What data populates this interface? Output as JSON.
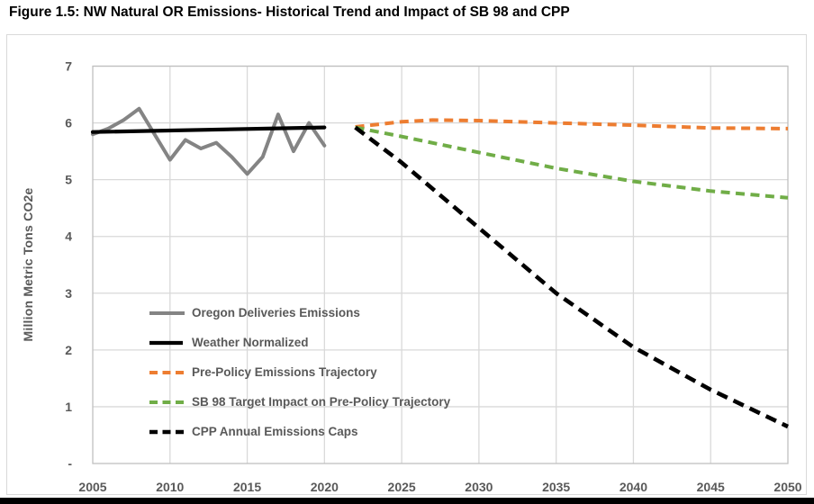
{
  "figure": {
    "title": "Figure 1.5: NW Natural OR Emissions- Historical Trend and Impact of SB 98 and CPP"
  },
  "chart_data": {
    "type": "line",
    "title": "Figure 1.5: NW Natural OR Emissions- Historical Trend and Impact of SB 98 and CPP",
    "xlabel": "",
    "ylabel": "Million Metric Tons CO2e",
    "xlim": [
      2005,
      2050
    ],
    "ylim": [
      0,
      7
    ],
    "grid": true,
    "legend_position": "inside-lower-left",
    "x_ticks": [
      2005,
      2010,
      2015,
      2020,
      2025,
      2030,
      2035,
      2040,
      2045,
      2050
    ],
    "y_ticks": [
      {
        "label": "7",
        "value": 7
      },
      {
        "label": "6",
        "value": 6
      },
      {
        "label": "5",
        "value": 5
      },
      {
        "label": "4",
        "value": 4
      },
      {
        "label": "3",
        "value": 3
      },
      {
        "label": "2",
        "value": 2
      },
      {
        "label": "1",
        "value": 1
      },
      {
        "label": "-",
        "value": 0
      }
    ],
    "colors": {
      "grid": "#d9d9d9",
      "axis": "#c0c0c0",
      "tick_text": "#595959",
      "legend_text": "#595959",
      "title_text": "#000000",
      "historical_gray": "#848484",
      "black": "#000000",
      "orange": "#ED7D31",
      "green": "#70AD47"
    },
    "series": [
      {
        "name": "Oregon Deliveries Emissions",
        "color": "#848484",
        "style": "solid",
        "width": 4,
        "dash": null,
        "x": [
          2005,
          2006,
          2007,
          2008,
          2009,
          2010,
          2011,
          2012,
          2013,
          2014,
          2015,
          2016,
          2017,
          2018,
          2019,
          2020
        ],
        "values": [
          5.8,
          5.9,
          6.05,
          6.25,
          5.8,
          5.35,
          5.7,
          5.55,
          5.65,
          5.4,
          5.1,
          5.4,
          6.15,
          5.5,
          6.0,
          5.6
        ]
      },
      {
        "name": "Weather Normalized",
        "color": "#000000",
        "style": "solid",
        "width": 4.2,
        "dash": null,
        "x": [
          2005,
          2020
        ],
        "values": [
          5.84,
          5.92
        ]
      },
      {
        "name": "Pre-Policy Emissions Trajectory",
        "color": "#ED7D31",
        "style": "dashed",
        "width": 4,
        "dash": "10 6.5",
        "x": [
          2022,
          2025,
          2027,
          2030,
          2035,
          2040,
          2045,
          2050
        ],
        "values": [
          5.93,
          6.02,
          6.05,
          6.04,
          6.0,
          5.96,
          5.91,
          5.9
        ]
      },
      {
        "name": "SB 98 Target Impact on Pre-Policy Trajectory",
        "color": "#70AD47",
        "style": "dashed",
        "width": 4,
        "dash": "10 6.5",
        "x": [
          2022,
          2025,
          2030,
          2035,
          2040,
          2045,
          2050
        ],
        "values": [
          5.92,
          5.76,
          5.48,
          5.2,
          4.97,
          4.8,
          4.68
        ]
      },
      {
        "name": "CPP Annual Emissions Caps",
        "color": "#000000",
        "style": "dashed",
        "width": 4.6,
        "dash": "12.5 7.5",
        "x": [
          2022,
          2025,
          2030,
          2035,
          2040,
          2045,
          2050
        ],
        "values": [
          5.92,
          5.3,
          4.15,
          3.0,
          2.05,
          1.3,
          0.65
        ]
      }
    ]
  }
}
